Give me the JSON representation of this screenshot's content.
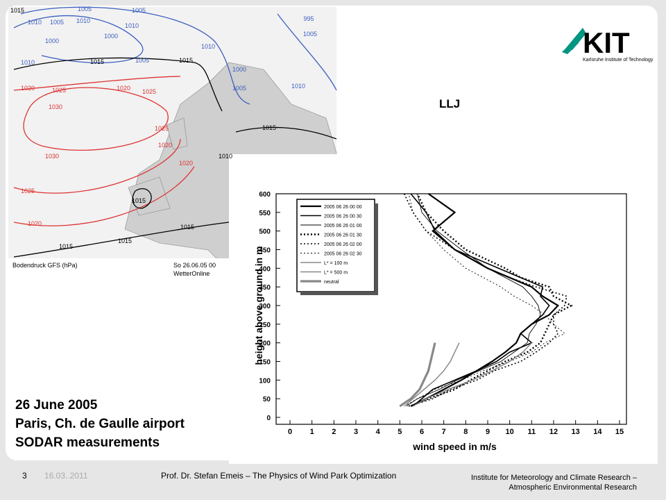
{
  "slide": {
    "heading": "LLJ",
    "text_lines": [
      "26 June 2005",
      "Paris, Ch. de Gaulle airport",
      "SODAR measurements"
    ],
    "logo": {
      "mark": "KIT",
      "subtitle": "Karlsruhe Institute of Technology"
    },
    "footer": {
      "page": "3",
      "date": "16.03..2011",
      "author": "Prof. Dr. Stefan Emeis – The Physics of Wind Park Optimization",
      "institute": [
        "Institute for Meteorology and Climate Research –",
        "Atmospheric Environmental Research"
      ]
    }
  },
  "map": {
    "caption": [
      "Bodendruck GFS (hPa)",
      "So 26.06.05 00",
      "WetterOnline"
    ],
    "isobar_labels": [
      "1015",
      "1005",
      "1005",
      "1010",
      "1005",
      "1010",
      "1010",
      "1000",
      "1000",
      "995",
      "1005",
      "1010",
      "1005",
      "1015",
      "1015",
      "1010",
      "1000",
      "1005",
      "1010",
      "1020",
      "1025",
      "1020",
      "1025",
      "1030",
      "1025",
      "1015",
      "1030",
      "1020",
      "1020",
      "1010",
      "1025",
      "1015",
      "1020",
      "1015",
      "1015",
      "1015"
    ]
  },
  "chart_data": {
    "type": "line",
    "xlabel": "wind speed in m/s",
    "ylabel": "height above ground in m",
    "xlim": [
      0,
      15
    ],
    "xticks": [
      0,
      1,
      2,
      3,
      4,
      5,
      6,
      7,
      8,
      9,
      10,
      11,
      12,
      13,
      14,
      15
    ],
    "ylim": [
      0,
      600
    ],
    "yticks": [
      0,
      50,
      100,
      150,
      200,
      250,
      300,
      350,
      400,
      450,
      500,
      550,
      600
    ],
    "series": [
      {
        "name": "2005 06 26 00 00",
        "color": "#000000",
        "style": "solid",
        "x": [
          5.5,
          6.2,
          7,
          7.8,
          8.5,
          9.2,
          9.8,
          10.3,
          10.5,
          11,
          11.8,
          12.2,
          11.5,
          11,
          10,
          9,
          7.5,
          6.5,
          7.5,
          6.3
        ],
        "values": [
          30,
          50,
          75,
          100,
          125,
          150,
          175,
          200,
          225,
          250,
          275,
          300,
          325,
          350,
          375,
          400,
          450,
          500,
          550,
          600
        ]
      },
      {
        "name": "2005 06 26 00 30",
        "color": "#000000",
        "style": "solid",
        "x": [
          5.6,
          6,
          6.5,
          7.5,
          8.5,
          9.4,
          10,
          11,
          10.5,
          11,
          11.5,
          11.8,
          11.4,
          11.5,
          10.5,
          9.5,
          7.5,
          6.6,
          6.2,
          5.5
        ],
        "values": [
          30,
          50,
          75,
          100,
          125,
          150,
          175,
          200,
          225,
          250,
          275,
          300,
          325,
          350,
          375,
          400,
          450,
          500,
          550,
          600
        ]
      },
      {
        "name": "2005 06 26 01 00",
        "color": "#000000",
        "style": "solid",
        "x": [
          5.3,
          5.8,
          6.8,
          7.6,
          8.6,
          9.6,
          10.2,
          10.8,
          10.9,
          11.2,
          11.4,
          11.3,
          11,
          10.6,
          9.8,
          9,
          7.8,
          6.7,
          6,
          5.8
        ],
        "values": [
          30,
          50,
          75,
          100,
          125,
          150,
          175,
          200,
          225,
          250,
          275,
          300,
          325,
          350,
          375,
          400,
          450,
          500,
          550,
          600
        ]
      },
      {
        "name": "2005 06 26 01 30",
        "color": "#000000",
        "style": "dotted",
        "x": [
          5.5,
          6.3,
          7.5,
          8.2,
          9,
          9.8,
          10.8,
          11.4,
          11.6,
          11.8,
          12,
          12.8,
          12,
          11.8,
          10.5,
          9.8,
          8,
          7,
          6.2,
          5.8
        ],
        "values": [
          30,
          50,
          75,
          100,
          125,
          150,
          175,
          200,
          225,
          250,
          275,
          300,
          325,
          350,
          375,
          400,
          450,
          500,
          550,
          600
        ]
      },
      {
        "name": "2005 06 26 02 00",
        "color": "#000000",
        "style": "dotted",
        "x": [
          5.4,
          6.5,
          7.3,
          8.5,
          9.3,
          10.5,
          11.2,
          11.8,
          12.2,
          12,
          12,
          12.5,
          12.6,
          11.2,
          10,
          9,
          7.5,
          6.2,
          5.6,
          5.2
        ],
        "values": [
          30,
          50,
          75,
          100,
          125,
          150,
          175,
          200,
          225,
          250,
          275,
          300,
          325,
          350,
          375,
          400,
          450,
          500,
          550,
          600
        ]
      },
      {
        "name": "2005 06 26 02 30",
        "color": "#000000",
        "style": "dotted",
        "x": [
          5.2,
          5.8,
          6.6,
          7.8,
          8.8,
          10,
          11,
          11.6,
          12.5,
          12,
          11.6,
          11,
          10.2,
          9.6,
          8.8,
          8,
          7,
          6.2,
          5.6,
          5.4
        ],
        "values": [
          30,
          50,
          75,
          100,
          125,
          150,
          175,
          200,
          225,
          250,
          275,
          300,
          325,
          350,
          375,
          400,
          450,
          500,
          550,
          600
        ]
      },
      {
        "name": "L* = 100 m",
        "color": "#888888",
        "style": "solid",
        "x": [
          5.2,
          5.6,
          6.1,
          6.6,
          7,
          7.3,
          7.5,
          7.7
        ],
        "values": [
          30,
          50,
          75,
          100,
          125,
          150,
          175,
          200
        ]
      },
      {
        "name": "L* = 500 m",
        "color": "#888888",
        "style": "solid",
        "x": [
          5.6,
          6.2,
          7.2,
          8.3,
          9.2,
          10,
          10.6,
          11
        ],
        "values": [
          30,
          50,
          75,
          100,
          125,
          150,
          175,
          200
        ]
      },
      {
        "name": "neutral",
        "color": "#888888",
        "style": "solid",
        "x": [
          5,
          5.5,
          5.9,
          6.1,
          6.3,
          6.4,
          6.5,
          6.6
        ],
        "values": [
          30,
          50,
          75,
          100,
          125,
          150,
          175,
          200
        ]
      }
    ]
  }
}
